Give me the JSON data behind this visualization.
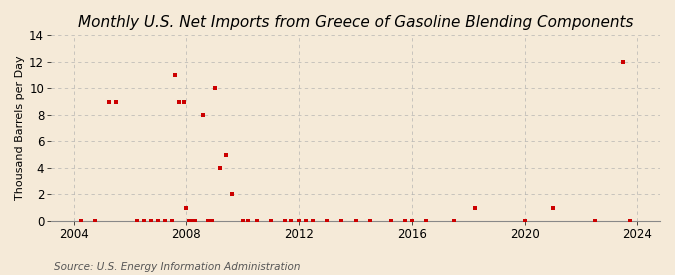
{
  "title": "Monthly U.S. Net Imports from Greece of Gasoline Blending Components",
  "ylabel": "Thousand Barrels per Day",
  "source": "Source: U.S. Energy Information Administration",
  "ylim": [
    0,
    14
  ],
  "yticks": [
    0,
    2,
    4,
    6,
    8,
    10,
    12,
    14
  ],
  "xlim": [
    2003.2,
    2024.8
  ],
  "xticks": [
    2004,
    2008,
    2012,
    2016,
    2020,
    2024
  ],
  "background_color": "#f5ead8",
  "grid_color": "#aaaaaa",
  "marker_color": "#cc0000",
  "data_points": [
    [
      2004.25,
      0
    ],
    [
      2004.75,
      0
    ],
    [
      2005.25,
      9
    ],
    [
      2005.5,
      9
    ],
    [
      2006.25,
      0
    ],
    [
      2006.5,
      0
    ],
    [
      2006.75,
      0
    ],
    [
      2007.0,
      0
    ],
    [
      2007.25,
      0
    ],
    [
      2007.5,
      0
    ],
    [
      2007.6,
      11
    ],
    [
      2007.75,
      9
    ],
    [
      2007.9,
      9
    ],
    [
      2008.0,
      1
    ],
    [
      2008.1,
      0
    ],
    [
      2008.2,
      0
    ],
    [
      2008.3,
      0
    ],
    [
      2008.6,
      8
    ],
    [
      2008.75,
      0
    ],
    [
      2008.9,
      0
    ],
    [
      2009.0,
      10
    ],
    [
      2009.2,
      4
    ],
    [
      2009.4,
      5
    ],
    [
      2009.6,
      2
    ],
    [
      2010.0,
      0
    ],
    [
      2010.2,
      0
    ],
    [
      2010.5,
      0
    ],
    [
      2011.0,
      0
    ],
    [
      2011.5,
      0
    ],
    [
      2011.7,
      0
    ],
    [
      2012.0,
      0
    ],
    [
      2012.25,
      0
    ],
    [
      2012.5,
      0
    ],
    [
      2013.0,
      0
    ],
    [
      2013.5,
      0
    ],
    [
      2014.0,
      0
    ],
    [
      2014.5,
      0
    ],
    [
      2015.25,
      0
    ],
    [
      2015.75,
      0
    ],
    [
      2016.0,
      0
    ],
    [
      2016.5,
      0
    ],
    [
      2017.5,
      0
    ],
    [
      2018.25,
      1
    ],
    [
      2020.0,
      0
    ],
    [
      2021.0,
      1
    ],
    [
      2022.5,
      0
    ],
    [
      2023.5,
      12
    ],
    [
      2023.75,
      0
    ]
  ],
  "title_fontsize": 11,
  "axis_fontsize": 8,
  "tick_fontsize": 8.5,
  "source_fontsize": 7.5
}
